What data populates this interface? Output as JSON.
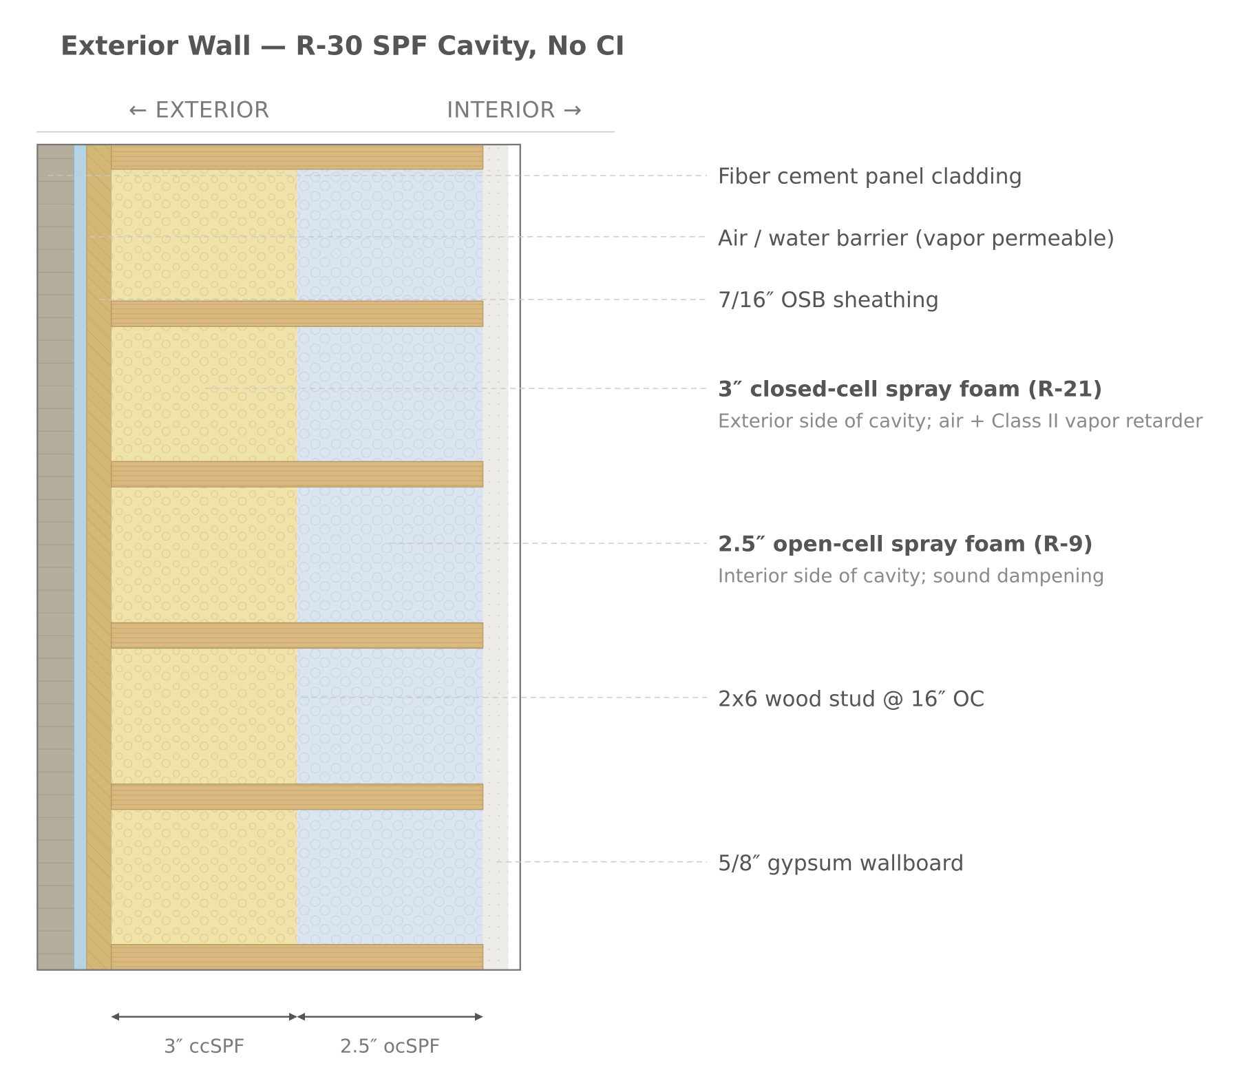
{
  "header": {
    "title": "Exterior Wall — R-30 SPF Cavity, No CI"
  },
  "orientation": {
    "exterior": "← EXTERIOR",
    "interior": "INTERIOR →"
  },
  "layers": [
    {
      "label": "Fiber cement panel cladding"
    },
    {
      "label": "Air / water barrier (vapor permeable)"
    },
    {
      "label": "7/16″ OSB sheathing"
    },
    {
      "label": "3″ closed-cell spray foam (R-21)",
      "note": "Exterior side of cavity; air + Class II vapor retarder"
    },
    {
      "label": "2.5″ open-cell spray foam (R-9)",
      "note": "Interior side of cavity; sound dampening"
    },
    {
      "label": "2x6 wood stud @ 16″ OC"
    },
    {
      "label": "5/8″ gypsum wallboard"
    }
  ],
  "dimensions": [
    {
      "label": "3″ ccSPF"
    },
    {
      "label": "2.5″ ocSPF"
    }
  ]
}
